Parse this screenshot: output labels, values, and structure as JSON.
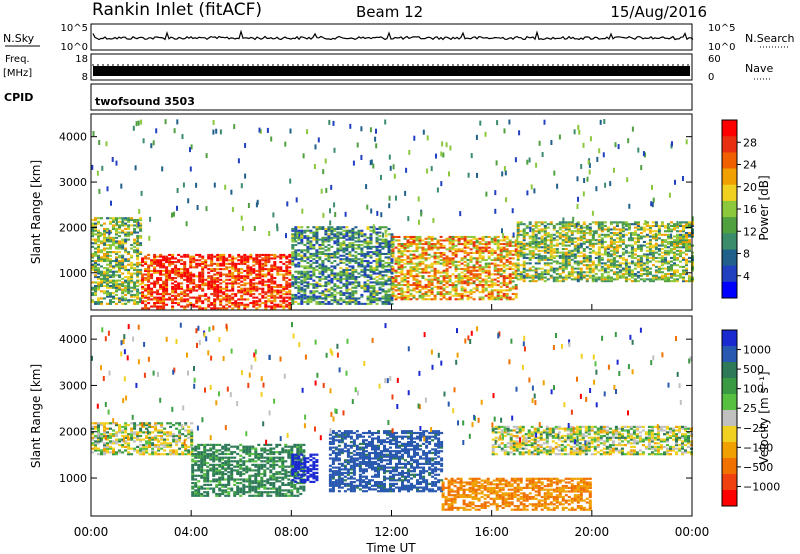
{
  "header": {
    "station": "Rankin Inlet (fitACF)",
    "beam": "Beam 12",
    "date": "15/Aug/2016"
  },
  "aux_panels": {
    "nsky_label": "N.Sky",
    "nsky_top_tick": "10^5",
    "nsky_bottom_tick": "10^0",
    "nsearch_label": "N.Search",
    "freq_label_line1": "Freq.",
    "freq_label_line2": "[MHz]",
    "freq_top_tick": "18",
    "freq_bottom_tick": "8",
    "nave_label": "Nave",
    "nave_top_tick": "60",
    "nave_bottom_tick": "0",
    "cpid_label": "CPID",
    "cpid_value": "twofsound 3503"
  },
  "chart_data": [
    {
      "type": "heatmap",
      "name": "power",
      "ylabel": "Slant Range [km]",
      "xlabel": "",
      "x_ticks": [
        "00:00",
        "04:00",
        "08:00",
        "12:00",
        "16:00",
        "20:00",
        "00:00"
      ],
      "xlim_hours": [
        0,
        24
      ],
      "y_ticks": [
        1000,
        2000,
        3000,
        4000
      ],
      "ylim": [
        180,
        4500
      ],
      "colorbar": {
        "label": "Power [dB]",
        "ticks": [
          "4",
          "8",
          "12",
          "16",
          "20",
          "24",
          "28"
        ],
        "range": [
          0,
          30
        ],
        "colors": [
          "#0000ff",
          "#2040c0",
          "#20608a",
          "#3a8c6a",
          "#50a040",
          "#8cc83c",
          "#f0d020",
          "#f0a000",
          "#f06000",
          "#e83010",
          "#ff0000"
        ]
      },
      "dominant_regions": [
        {
          "t0": 0.0,
          "t1": 2.0,
          "r0": 300,
          "r1": 2200,
          "value": 14
        },
        {
          "t0": 2.0,
          "t1": 8.0,
          "r0": 200,
          "r1": 1400,
          "value": 26
        },
        {
          "t0": 8.0,
          "t1": 12.0,
          "r0": 300,
          "r1": 2000,
          "value": 10
        },
        {
          "t0": 12.0,
          "t1": 17.0,
          "r0": 400,
          "r1": 1800,
          "value": 20
        },
        {
          "t0": 17.0,
          "t1": 24.0,
          "r0": 800,
          "r1": 2100,
          "value": 14
        }
      ]
    },
    {
      "type": "heatmap",
      "name": "velocity",
      "ylabel": "Slant Range [km]",
      "xlabel": "Time UT",
      "x_ticks": [
        "00:00",
        "04:00",
        "08:00",
        "12:00",
        "16:00",
        "20:00",
        "00:00"
      ],
      "xlim_hours": [
        0,
        24
      ],
      "y_ticks": [
        1000,
        2000,
        3000,
        4000
      ],
      "ylim": [
        180,
        4500
      ],
      "colorbar": {
        "label": "Velocity [m s⁻¹]",
        "ticks": [
          "1000",
          "500",
          "100",
          "25",
          "−25",
          "−100",
          "−500",
          "−1000"
        ],
        "colors": [
          "#1a2ad0",
          "#2858b0",
          "#2e7a58",
          "#3a9a44",
          "#58c040",
          "#c0c0c0",
          "#f0d020",
          "#f0a000",
          "#f07000",
          "#f04010",
          "#ff0000"
        ]
      },
      "dominant_regions": [
        {
          "t0": 0.0,
          "t1": 4.0,
          "r0": 1500,
          "r1": 2200,
          "value": 0
        },
        {
          "t0": 4.0,
          "t1": 8.5,
          "r0": 600,
          "r1": 1700,
          "value": 150
        },
        {
          "t0": 8.0,
          "t1": 9.0,
          "r0": 900,
          "r1": 1500,
          "value": 900
        },
        {
          "t0": 9.5,
          "t1": 14.0,
          "r0": 700,
          "r1": 2000,
          "value": 400
        },
        {
          "t0": 14.0,
          "t1": 20.0,
          "r0": 300,
          "r1": 1000,
          "value": -300
        },
        {
          "t0": 16.0,
          "t1": 24.0,
          "r0": 1500,
          "r1": 2100,
          "value": 0
        }
      ]
    }
  ]
}
